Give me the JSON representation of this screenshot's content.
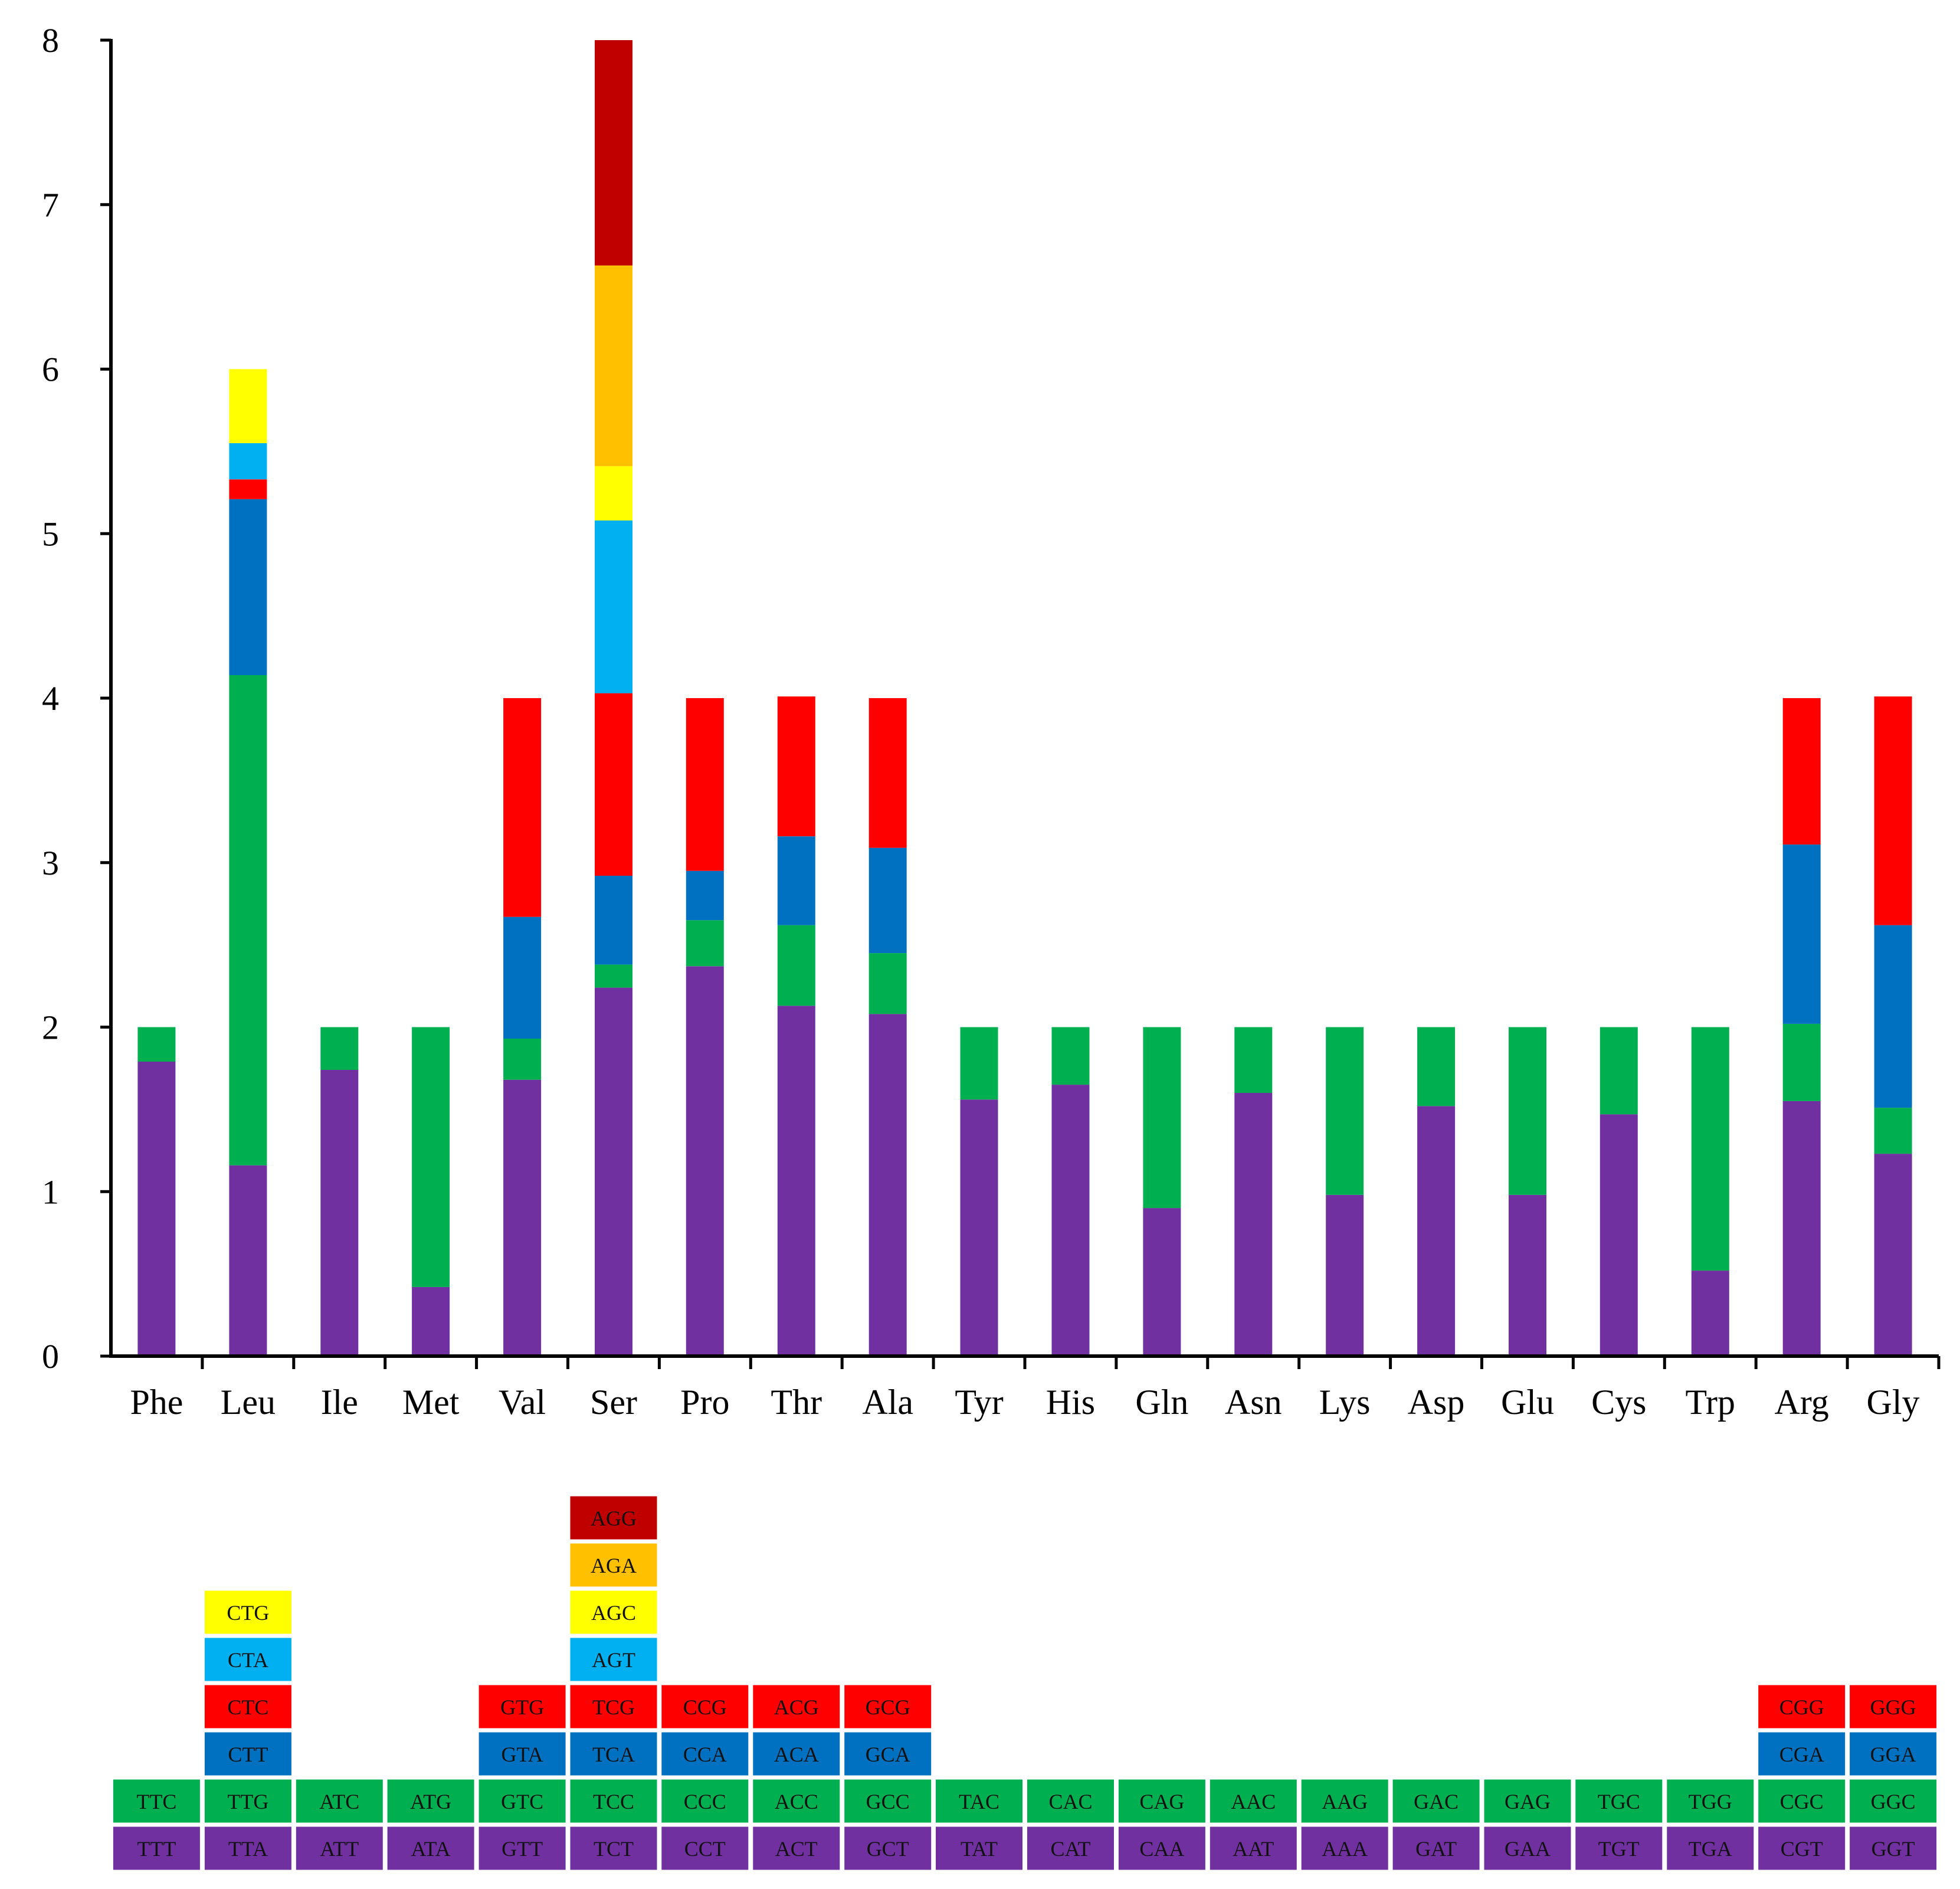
{
  "chart_data": {
    "type": "bar",
    "stacked": true,
    "title": "",
    "xlabel": "",
    "ylabel": "",
    "ylim": [
      0,
      8
    ],
    "yticks": [
      "0",
      "1",
      "2",
      "3",
      "4",
      "5",
      "6",
      "7",
      "8"
    ],
    "categories": [
      "Phe",
      "Leu",
      "Ile",
      "Met",
      "Val",
      "Ser",
      "Pro",
      "Thr",
      "Ala",
      "Tyr",
      "His",
      "Gln",
      "Asn",
      "Lys",
      "Asp",
      "Glu",
      "Cys",
      "Trp",
      "Arg",
      "Gly"
    ],
    "colors": [
      "#7030A0",
      "#00B050",
      "#0070C0",
      "#FF0000",
      "#00B0F0",
      "#FFFF00",
      "#FFC000",
      "#C00000"
    ],
    "bars": [
      {
        "name": "Phe",
        "values": [
          1.79,
          0.21
        ],
        "codons": [
          "TTT",
          "TTC"
        ]
      },
      {
        "name": "Leu",
        "values": [
          1.16,
          2.98,
          1.07,
          0.12,
          0.22,
          0.45
        ],
        "codons": [
          "TTA",
          "TTG",
          "CTT",
          "CTC",
          "CTA",
          "CTG"
        ]
      },
      {
        "name": "Ile",
        "values": [
          1.74,
          0.26
        ],
        "codons": [
          "ATT",
          "ATC"
        ]
      },
      {
        "name": "Met",
        "values": [
          0.42,
          1.58
        ],
        "codons": [
          "ATA",
          "ATG"
        ]
      },
      {
        "name": "Val",
        "values": [
          1.68,
          0.25,
          0.74,
          1.33
        ],
        "codons": [
          "GTT",
          "GTC",
          "GTA",
          "GTG"
        ]
      },
      {
        "name": "Ser",
        "values": [
          2.24,
          0.14,
          0.54,
          1.11,
          1.05,
          0.33,
          1.22,
          1.37
        ],
        "codons": [
          "TCT",
          "TCC",
          "TCA",
          "TCG",
          "AGT",
          "AGC",
          "AGA",
          "AGG"
        ]
      },
      {
        "name": "Pro",
        "values": [
          2.37,
          0.28,
          0.3,
          1.05
        ],
        "codons": [
          "CCT",
          "CCC",
          "CCA",
          "CCG"
        ]
      },
      {
        "name": "Thr",
        "values": [
          2.13,
          0.49,
          0.54,
          0.85
        ],
        "codons": [
          "ACT",
          "ACC",
          "ACA",
          "ACG"
        ]
      },
      {
        "name": "Ala",
        "values": [
          2.08,
          0.37,
          0.64,
          0.91
        ],
        "codons": [
          "GCT",
          "GCC",
          "GCA",
          "GCG"
        ]
      },
      {
        "name": "Tyr",
        "values": [
          1.56,
          0.44
        ],
        "codons": [
          "TAT",
          "TAC"
        ]
      },
      {
        "name": "His",
        "values": [
          1.65,
          0.35
        ],
        "codons": [
          "CAT",
          "CAC"
        ]
      },
      {
        "name": "Gln",
        "values": [
          0.9,
          1.1
        ],
        "codons": [
          "CAA",
          "CAG"
        ]
      },
      {
        "name": "Asn",
        "values": [
          1.6,
          0.4
        ],
        "codons": [
          "AAT",
          "AAC"
        ]
      },
      {
        "name": "Lys",
        "values": [
          0.98,
          1.02
        ],
        "codons": [
          "AAA",
          "AAG"
        ]
      },
      {
        "name": "Asp",
        "values": [
          1.52,
          0.48
        ],
        "codons": [
          "GAT",
          "GAC"
        ]
      },
      {
        "name": "Glu",
        "values": [
          0.98,
          1.02
        ],
        "codons": [
          "GAA",
          "GAG"
        ]
      },
      {
        "name": "Cys",
        "values": [
          1.47,
          0.53
        ],
        "codons": [
          "TGT",
          "TGC"
        ]
      },
      {
        "name": "Trp",
        "values": [
          0.52,
          1.48
        ],
        "codons": [
          "TGA",
          "TGG"
        ]
      },
      {
        "name": "Arg",
        "values": [
          1.55,
          0.47,
          1.09,
          0.89
        ],
        "codons": [
          "CGT",
          "CGC",
          "CGA",
          "CGG"
        ]
      },
      {
        "name": "Gly",
        "values": [
          1.23,
          0.28,
          1.11,
          1.39
        ],
        "codons": [
          "GGT",
          "GGC",
          "GGA",
          "GGG"
        ]
      }
    ]
  }
}
